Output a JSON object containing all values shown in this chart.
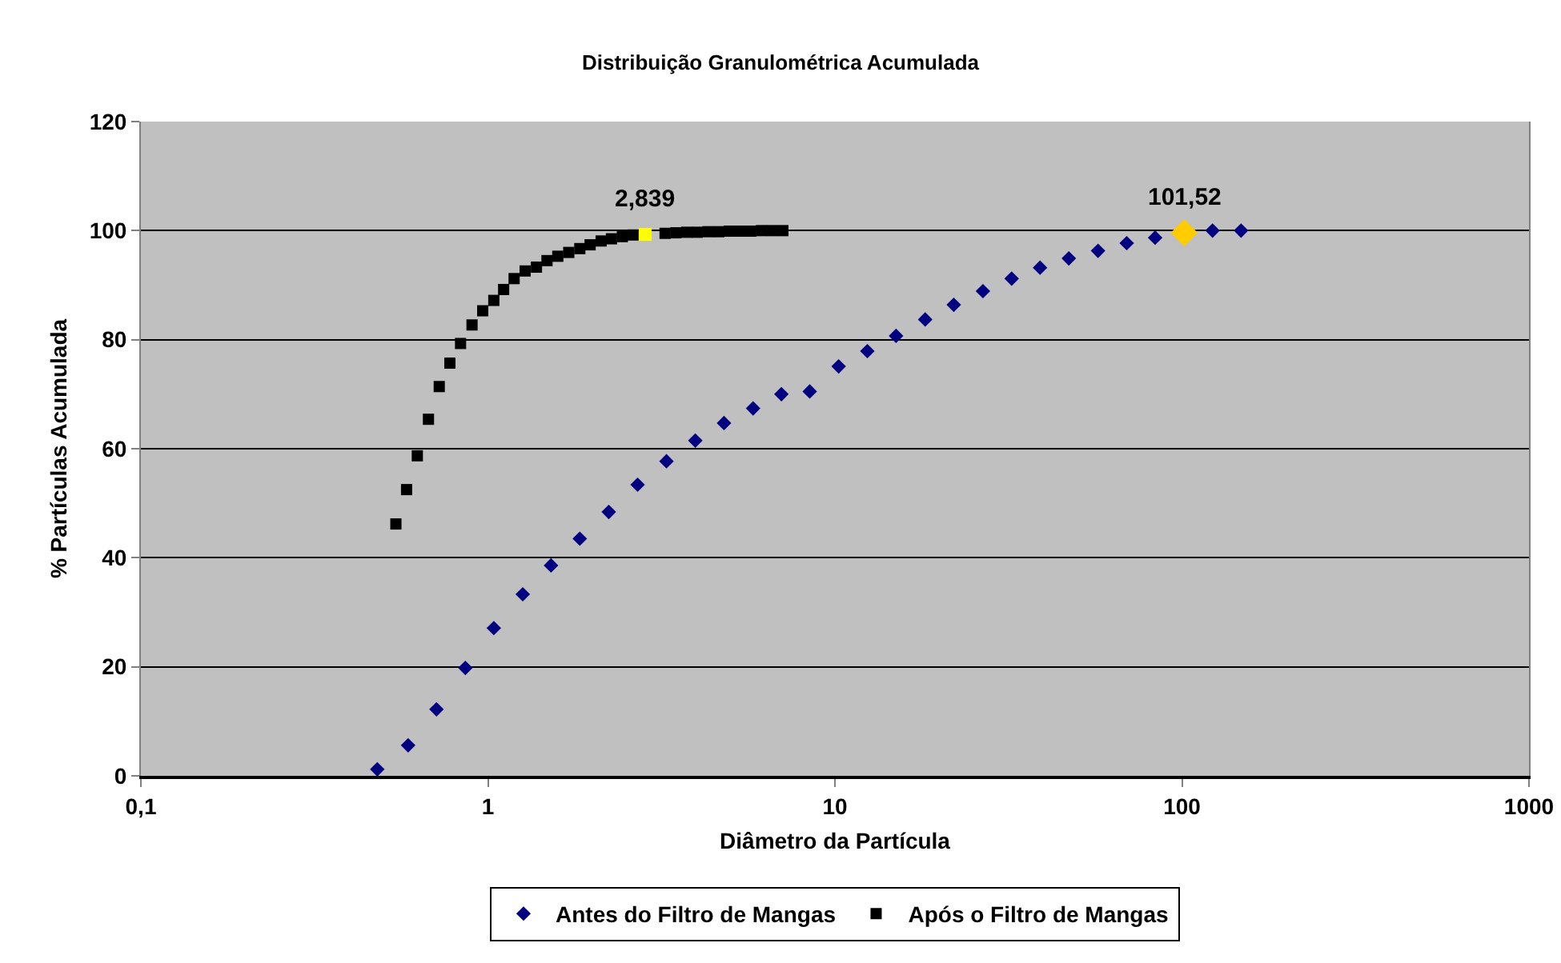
{
  "chart_data": {
    "type": "scatter",
    "title": "Distribuição Granulométrica Acumulada",
    "xlabel": "Diâmetro da Partícula",
    "ylabel": "% Partículas Acumulada",
    "log": "x",
    "xlim": [
      0.1,
      1000
    ],
    "xticks": [
      {
        "value": 0.1,
        "label": "0,1"
      },
      1,
      10,
      100,
      1000
    ],
    "ylim": [
      0,
      120
    ],
    "yticks": [
      0,
      20,
      40,
      60,
      80,
      100,
      120
    ],
    "grid": "y",
    "legend": "bottom",
    "series": [
      {
        "name": "Antes do Filtro de Mangas",
        "color": "#000080",
        "marker": "diamond",
        "x": [
          0.48,
          0.589,
          0.711,
          0.861,
          1.04,
          1.26,
          1.52,
          1.84,
          2.23,
          2.7,
          3.27,
          3.96,
          4.79,
          5.81,
          7.01,
          8.46,
          10.25,
          12.4,
          15,
          18.2,
          22,
          26.7,
          32.3,
          39,
          47.2,
          57.3,
          69.3,
          83.7,
          122.5,
          148
        ],
        "values": [
          1.2,
          5.6,
          12.2,
          19.8,
          27.1,
          33.3,
          38.6,
          43.5,
          48.4,
          53.4,
          57.7,
          61.5,
          64.7,
          67.4,
          70,
          70.5,
          75.1,
          77.9,
          80.7,
          83.7,
          86.4,
          88.9,
          91.2,
          93.2,
          94.9,
          96.3,
          97.7,
          98.7,
          100,
          100
        ]
      },
      {
        "name": "Após o Filtro de Mangas",
        "color": "#000000",
        "marker": "square",
        "x": [
          0.543,
          0.583,
          0.626,
          0.674,
          0.724,
          0.777,
          0.834,
          0.9,
          0.966,
          1.04,
          1.11,
          1.19,
          1.28,
          1.38,
          1.48,
          1.59,
          1.71,
          1.84,
          1.97,
          2.12,
          2.27,
          2.44,
          2.62,
          3.24,
          3.48,
          3.74,
          4.01,
          4.31,
          4.63,
          4.96,
          5.33,
          5.72,
          6.14,
          6.59,
          7.08
        ],
        "values": [
          46.2,
          52.5,
          58.7,
          65.4,
          71.4,
          75.7,
          79.3,
          82.7,
          85.3,
          87.2,
          89.2,
          91.2,
          92.6,
          93.3,
          94.5,
          95.3,
          96,
          96.7,
          97.4,
          98.1,
          98.5,
          98.9,
          99.2,
          99.5,
          99.6,
          99.7,
          99.7,
          99.8,
          99.8,
          99.9,
          99.9,
          99.9,
          100,
          100,
          100
        ]
      },
      {
        "color": "#ffff00",
        "marker": "square",
        "x": [
          2.839
        ],
        "values": [
          99.3
        ]
      },
      {
        "color": "#ffcc00",
        "marker": "diamond",
        "x": [
          101.52
        ],
        "values": [
          99.6
        ]
      }
    ],
    "annotations": [
      {
        "text": "2,839",
        "x": 2.839,
        "y": 99.3
      },
      {
        "text": "101,52",
        "x": 101.52,
        "y": 99.6
      }
    ]
  }
}
